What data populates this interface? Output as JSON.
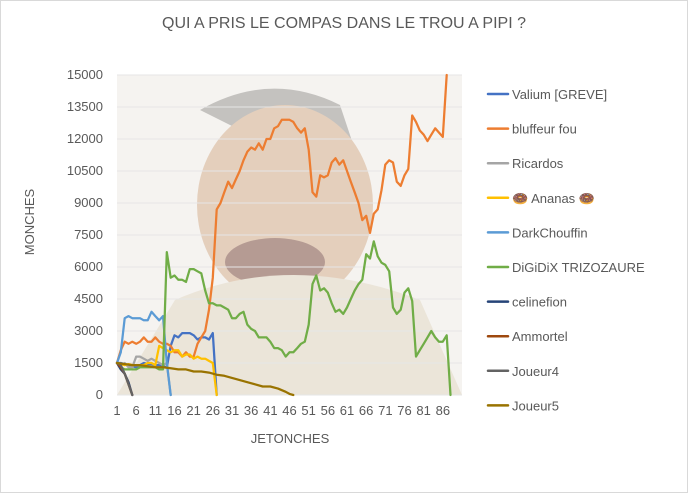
{
  "chart_data": {
    "type": "line",
    "title": "QUI A PRIS LE COMPAS DANS LE TROU A PIPI ?",
    "xlabel": "JETONCHES",
    "ylabel": "MONCHES",
    "xlim": [
      1,
      91
    ],
    "ylim": [
      0,
      15000
    ],
    "x_ticks": [
      "1",
      "6",
      "11",
      "16",
      "21",
      "26",
      "31",
      "36",
      "41",
      "46",
      "51",
      "56",
      "61",
      "66",
      "71",
      "76",
      "81",
      "86"
    ],
    "y_ticks": [
      "0",
      "1500",
      "3000",
      "4500",
      "6000",
      "7500",
      "9000",
      "10500",
      "12000",
      "13500",
      "15000"
    ],
    "grid": true,
    "legend_position": "right",
    "background_image": "laughing-man-photo",
    "series": [
      {
        "name": "Valium [GREVE]",
        "color": "#4472C4",
        "points": [
          [
            1,
            1500
          ],
          [
            2,
            1500
          ],
          [
            3,
            1450
          ],
          [
            4,
            1400
          ],
          [
            5,
            1350
          ],
          [
            6,
            1300
          ],
          [
            7,
            1400
          ],
          [
            8,
            1500
          ],
          [
            9,
            1450
          ],
          [
            10,
            1450
          ],
          [
            11,
            1400
          ],
          [
            12,
            1400
          ],
          [
            13,
            1350
          ],
          [
            14,
            1300
          ],
          [
            15,
            2300
          ],
          [
            16,
            2800
          ],
          [
            17,
            2700
          ],
          [
            18,
            2900
          ],
          [
            19,
            2900
          ],
          [
            20,
            2900
          ],
          [
            21,
            2800
          ],
          [
            22,
            2600
          ],
          [
            23,
            2700
          ],
          [
            24,
            2700
          ],
          [
            25,
            2600
          ],
          [
            26,
            2900
          ],
          [
            27,
            0
          ]
        ]
      },
      {
        "name": "bluffeur fou",
        "color": "#ED7D31",
        "points": [
          [
            1,
            1500
          ],
          [
            2,
            2100
          ],
          [
            3,
            2500
          ],
          [
            4,
            2400
          ],
          [
            5,
            2500
          ],
          [
            6,
            2400
          ],
          [
            7,
            2500
          ],
          [
            8,
            2700
          ],
          [
            9,
            2500
          ],
          [
            10,
            2500
          ],
          [
            11,
            2700
          ],
          [
            12,
            2500
          ],
          [
            13,
            2400
          ],
          [
            14,
            2400
          ],
          [
            15,
            2300
          ],
          [
            16,
            2000
          ],
          [
            17,
            2000
          ],
          [
            18,
            1800
          ],
          [
            19,
            2000
          ],
          [
            20,
            1800
          ],
          [
            21,
            1800
          ],
          [
            22,
            2400
          ],
          [
            23,
            2700
          ],
          [
            24,
            3000
          ],
          [
            25,
            4000
          ],
          [
            26,
            5500
          ],
          [
            27,
            8700
          ],
          [
            28,
            9000
          ],
          [
            29,
            9500
          ],
          [
            30,
            10000
          ],
          [
            31,
            9700
          ],
          [
            32,
            10100
          ],
          [
            33,
            10500
          ],
          [
            34,
            11000
          ],
          [
            35,
            11400
          ],
          [
            36,
            11600
          ],
          [
            37,
            11500
          ],
          [
            38,
            11800
          ],
          [
            39,
            11500
          ],
          [
            40,
            12000
          ],
          [
            41,
            12000
          ],
          [
            42,
            12500
          ],
          [
            43,
            12600
          ],
          [
            44,
            12900
          ],
          [
            45,
            12900
          ],
          [
            46,
            12900
          ],
          [
            47,
            12800
          ],
          [
            48,
            12500
          ],
          [
            49,
            12300
          ],
          [
            50,
            12500
          ],
          [
            51,
            11500
          ],
          [
            52,
            9500
          ],
          [
            53,
            9300
          ],
          [
            54,
            10300
          ],
          [
            55,
            10200
          ],
          [
            56,
            10300
          ],
          [
            57,
            10900
          ],
          [
            58,
            11100
          ],
          [
            59,
            10800
          ],
          [
            60,
            11000
          ],
          [
            61,
            10500
          ],
          [
            62,
            10000
          ],
          [
            63,
            9500
          ],
          [
            64,
            9000
          ],
          [
            65,
            8200
          ],
          [
            66,
            8400
          ],
          [
            67,
            7600
          ],
          [
            68,
            8500
          ],
          [
            69,
            8700
          ],
          [
            70,
            9600
          ],
          [
            71,
            10800
          ],
          [
            72,
            11000
          ],
          [
            73,
            10900
          ],
          [
            74,
            10000
          ],
          [
            75,
            9800
          ],
          [
            76,
            10300
          ],
          [
            77,
            10600
          ],
          [
            78,
            13100
          ],
          [
            79,
            12800
          ],
          [
            80,
            12400
          ],
          [
            81,
            12200
          ],
          [
            82,
            11900
          ],
          [
            83,
            12200
          ],
          [
            84,
            12500
          ],
          [
            85,
            12300
          ],
          [
            86,
            12100
          ],
          [
            87,
            15000
          ]
        ]
      },
      {
        "name": "Ricardos",
        "color": "#A5A5A5",
        "points": [
          [
            1,
            1500
          ],
          [
            2,
            1400
          ],
          [
            3,
            1500
          ],
          [
            4,
            1300
          ],
          [
            5,
            1300
          ],
          [
            6,
            1800
          ],
          [
            7,
            1800
          ],
          [
            8,
            1700
          ],
          [
            9,
            1600
          ],
          [
            10,
            1700
          ],
          [
            11,
            1600
          ],
          [
            12,
            1500
          ],
          [
            13,
            1400
          ],
          [
            14,
            1500
          ],
          [
            15,
            0
          ]
        ]
      },
      {
        "name": "🍩 Ananas 🍩",
        "color": "#FFC000",
        "points": [
          [
            1,
            1500
          ],
          [
            2,
            1450
          ],
          [
            3,
            1400
          ],
          [
            4,
            1450
          ],
          [
            5,
            1400
          ],
          [
            6,
            1400
          ],
          [
            7,
            1400
          ],
          [
            8,
            1400
          ],
          [
            9,
            1500
          ],
          [
            10,
            1500
          ],
          [
            11,
            1400
          ],
          [
            12,
            2300
          ],
          [
            13,
            2200
          ],
          [
            14,
            2100
          ],
          [
            15,
            2000
          ],
          [
            16,
            2100
          ],
          [
            17,
            2100
          ],
          [
            18,
            1800
          ],
          [
            19,
            1900
          ],
          [
            20,
            1900
          ],
          [
            21,
            1700
          ],
          [
            22,
            1800
          ],
          [
            23,
            1700
          ],
          [
            24,
            1700
          ],
          [
            25,
            1600
          ],
          [
            26,
            1500
          ],
          [
            27,
            0
          ]
        ]
      },
      {
        "name": "DarkChouffin",
        "color": "#5B9BD5",
        "points": [
          [
            1,
            1500
          ],
          [
            2,
            2000
          ],
          [
            3,
            3600
          ],
          [
            4,
            3700
          ],
          [
            5,
            3600
          ],
          [
            6,
            3600
          ],
          [
            7,
            3600
          ],
          [
            8,
            3500
          ],
          [
            9,
            3500
          ],
          [
            10,
            3900
          ],
          [
            11,
            3700
          ],
          [
            12,
            3500
          ],
          [
            13,
            3700
          ],
          [
            14,
            1500
          ],
          [
            15,
            0
          ]
        ]
      },
      {
        "name": "DiGiDiX TRIZOZAURE",
        "color": "#70AD47",
        "points": [
          [
            1,
            1500
          ],
          [
            2,
            1300
          ],
          [
            3,
            1200
          ],
          [
            4,
            1200
          ],
          [
            5,
            1200
          ],
          [
            6,
            1200
          ],
          [
            7,
            1300
          ],
          [
            8,
            1300
          ],
          [
            9,
            1300
          ],
          [
            10,
            1300
          ],
          [
            11,
            1300
          ],
          [
            12,
            1200
          ],
          [
            13,
            1200
          ],
          [
            14,
            6700
          ],
          [
            15,
            5500
          ],
          [
            16,
            5600
          ],
          [
            17,
            5400
          ],
          [
            18,
            5400
          ],
          [
            19,
            5300
          ],
          [
            20,
            5900
          ],
          [
            21,
            5900
          ],
          [
            22,
            5800
          ],
          [
            23,
            5700
          ],
          [
            24,
            4900
          ],
          [
            25,
            4300
          ],
          [
            26,
            4300
          ],
          [
            27,
            4200
          ],
          [
            28,
            4200
          ],
          [
            29,
            4100
          ],
          [
            30,
            4000
          ],
          [
            31,
            3600
          ],
          [
            32,
            3600
          ],
          [
            33,
            3800
          ],
          [
            34,
            3900
          ],
          [
            35,
            3300
          ],
          [
            36,
            3100
          ],
          [
            37,
            3000
          ],
          [
            38,
            2700
          ],
          [
            39,
            2700
          ],
          [
            40,
            2700
          ],
          [
            41,
            2500
          ],
          [
            42,
            2200
          ],
          [
            43,
            2200
          ],
          [
            44,
            2100
          ],
          [
            45,
            1800
          ],
          [
            46,
            2000
          ],
          [
            47,
            2000
          ],
          [
            48,
            2200
          ],
          [
            49,
            2400
          ],
          [
            50,
            2500
          ],
          [
            51,
            3300
          ],
          [
            52,
            5200
          ],
          [
            53,
            5600
          ],
          [
            54,
            4900
          ],
          [
            55,
            5000
          ],
          [
            56,
            4800
          ],
          [
            57,
            4300
          ],
          [
            58,
            3900
          ],
          [
            59,
            4000
          ],
          [
            60,
            3800
          ],
          [
            61,
            4100
          ],
          [
            62,
            4500
          ],
          [
            63,
            4900
          ],
          [
            64,
            5200
          ],
          [
            65,
            5400
          ],
          [
            66,
            6600
          ],
          [
            67,
            6400
          ],
          [
            68,
            7200
          ],
          [
            69,
            6500
          ],
          [
            70,
            6200
          ],
          [
            71,
            6100
          ],
          [
            72,
            5800
          ],
          [
            73,
            4100
          ],
          [
            74,
            3800
          ],
          [
            75,
            4000
          ],
          [
            76,
            4800
          ],
          [
            77,
            5000
          ],
          [
            78,
            4400
          ],
          [
            79,
            1800
          ],
          [
            80,
            2100
          ],
          [
            81,
            2400
          ],
          [
            82,
            2700
          ],
          [
            83,
            3000
          ],
          [
            84,
            2700
          ],
          [
            85,
            2500
          ],
          [
            86,
            2500
          ],
          [
            87,
            2800
          ],
          [
            88,
            0
          ]
        ]
      },
      {
        "name": "celinefion",
        "color": "#264478",
        "points": [
          [
            1,
            1500
          ],
          [
            2,
            1200
          ],
          [
            3,
            1000
          ],
          [
            4,
            600
          ],
          [
            5,
            0
          ]
        ]
      },
      {
        "name": "Ammortel",
        "color": "#9E480E",
        "points": [
          [
            1,
            1500
          ],
          [
            2,
            1300
          ],
          [
            3,
            1000
          ],
          [
            4,
            500
          ],
          [
            5,
            0
          ]
        ]
      },
      {
        "name": "Joueur4",
        "color": "#636363",
        "points": [
          [
            1,
            1500
          ],
          [
            2,
            1400
          ],
          [
            3,
            1000
          ],
          [
            4,
            500
          ],
          [
            5,
            0
          ]
        ]
      },
      {
        "name": "Joueur5",
        "color": "#997300",
        "points": [
          [
            1,
            1500
          ],
          [
            3,
            1450
          ],
          [
            5,
            1400
          ],
          [
            7,
            1400
          ],
          [
            9,
            1350
          ],
          [
            11,
            1300
          ],
          [
            13,
            1300
          ],
          [
            15,
            1250
          ],
          [
            17,
            1200
          ],
          [
            19,
            1200
          ],
          [
            21,
            1100
          ],
          [
            23,
            1100
          ],
          [
            25,
            1050
          ],
          [
            27,
            950
          ],
          [
            29,
            900
          ],
          [
            31,
            800
          ],
          [
            33,
            700
          ],
          [
            35,
            600
          ],
          [
            37,
            500
          ],
          [
            39,
            400
          ],
          [
            41,
            400
          ],
          [
            43,
            300
          ],
          [
            45,
            150
          ],
          [
            46,
            50
          ],
          [
            47,
            0
          ]
        ]
      }
    ]
  }
}
